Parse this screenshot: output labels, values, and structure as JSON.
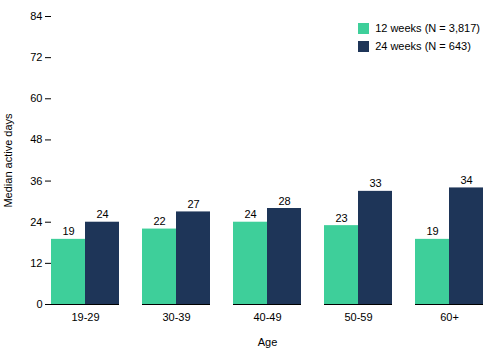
{
  "chart_data": {
    "type": "bar",
    "categories": [
      "19-29",
      "30-39",
      "40-49",
      "50-59",
      "60+"
    ],
    "series": [
      {
        "name": "12 weeks (N = 3,817)",
        "color": "#3ecf9a",
        "values": [
          19,
          22,
          24,
          23,
          19
        ]
      },
      {
        "name": "24 weeks (N = 643)",
        "color": "#1e3558",
        "values": [
          24,
          27,
          28,
          33,
          34
        ]
      }
    ],
    "xlabel": "Age",
    "ylabel": "Median active days",
    "ylim": [
      0,
      84
    ],
    "yticks": [
      0,
      12,
      24,
      36,
      48,
      60,
      72,
      84
    ],
    "grid": false,
    "legend": "upper right",
    "data_labels": true
  }
}
